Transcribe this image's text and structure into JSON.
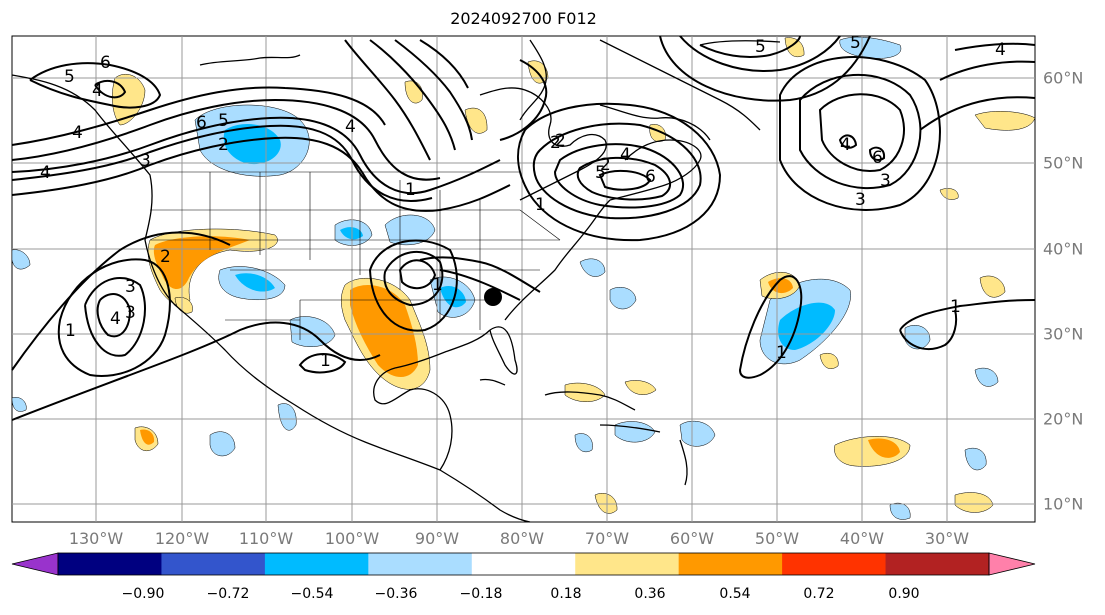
{
  "title": "2024092700 F012",
  "lon_ticks": [
    "130°W",
    "120°W",
    "110°W",
    "100°W",
    "90°W",
    "80°W",
    "70°W",
    "60°W",
    "50°W",
    "40°W",
    "30°W"
  ],
  "lat_ticks": [
    "60°N",
    "50°N",
    "40°N",
    "30°N",
    "20°N",
    "10°N"
  ],
  "contour_labels": [
    "6",
    "5",
    "4",
    "4",
    "2",
    "3",
    "4",
    "2",
    "3",
    "4",
    "1",
    "1",
    "6",
    "5",
    "4",
    "2",
    "5",
    "4",
    "6",
    "5",
    "3",
    "4",
    "1",
    "6",
    "1",
    "1",
    "1",
    "4",
    "3",
    "5",
    "1",
    "2",
    "2",
    "3"
  ],
  "colorbar": {
    "ticks": [
      "−0.90",
      "−0.72",
      "−0.54",
      "−0.36",
      "−0.18",
      "0.18",
      "0.36",
      "0.54",
      "0.72",
      "0.90"
    ],
    "colors": [
      "#9933cc",
      "#000080",
      "#3355cc",
      "#00bbff",
      "#aaddff",
      "#ffffff",
      "#ffe68a",
      "#ff9900",
      "#ff3300",
      "#b22222",
      "#ff80aa"
    ]
  }
}
